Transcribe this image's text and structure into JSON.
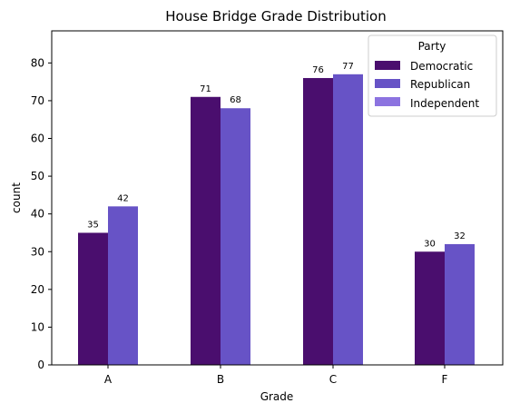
{
  "chart_data": {
    "type": "bar",
    "title": "House Bridge Grade Distribution",
    "xlabel": "Grade",
    "ylabel": "count",
    "categories": [
      "A",
      "B",
      "C",
      "F"
    ],
    "ylim": [
      0,
      88.5
    ],
    "yticks": [
      0,
      10,
      20,
      30,
      40,
      50,
      60,
      70,
      80
    ],
    "grid": false,
    "legend": {
      "title": "Party",
      "placement": "top-right",
      "entries": [
        "Democratic",
        "Republican",
        "Independent"
      ]
    },
    "series": [
      {
        "name": "Democratic",
        "color": "#4a0e6e",
        "values": [
          35,
          71,
          76,
          30
        ]
      },
      {
        "name": "Republican",
        "color": "#6753c6",
        "values": [
          42,
          68,
          77,
          32
        ]
      },
      {
        "name": "Independent",
        "color": "#8c73e0",
        "values": [
          0,
          0,
          0,
          0
        ]
      }
    ]
  }
}
